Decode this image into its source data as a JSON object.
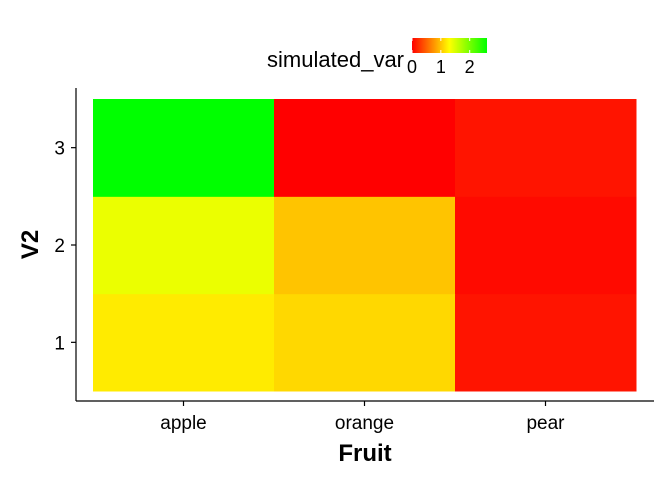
{
  "chart_data": {
    "type": "heatmap",
    "xlabel": "Fruit",
    "ylabel": "V2",
    "x_categories": [
      "apple",
      "orange",
      "pear"
    ],
    "y_categories": [
      "1",
      "2",
      "3"
    ],
    "values": [
      [
        1.2,
        1.1,
        0.1
      ],
      [
        1.4,
        1.0,
        0.05
      ],
      [
        2.6,
        0.0,
        0.1
      ]
    ],
    "legend": {
      "title": "simulated_var",
      "position": "top",
      "breaks": [
        0,
        1,
        2
      ],
      "range": [
        0,
        2.6
      ],
      "colors": [
        "#ff0000",
        "#ffff00",
        "#00ff00"
      ]
    },
    "grid": false
  }
}
